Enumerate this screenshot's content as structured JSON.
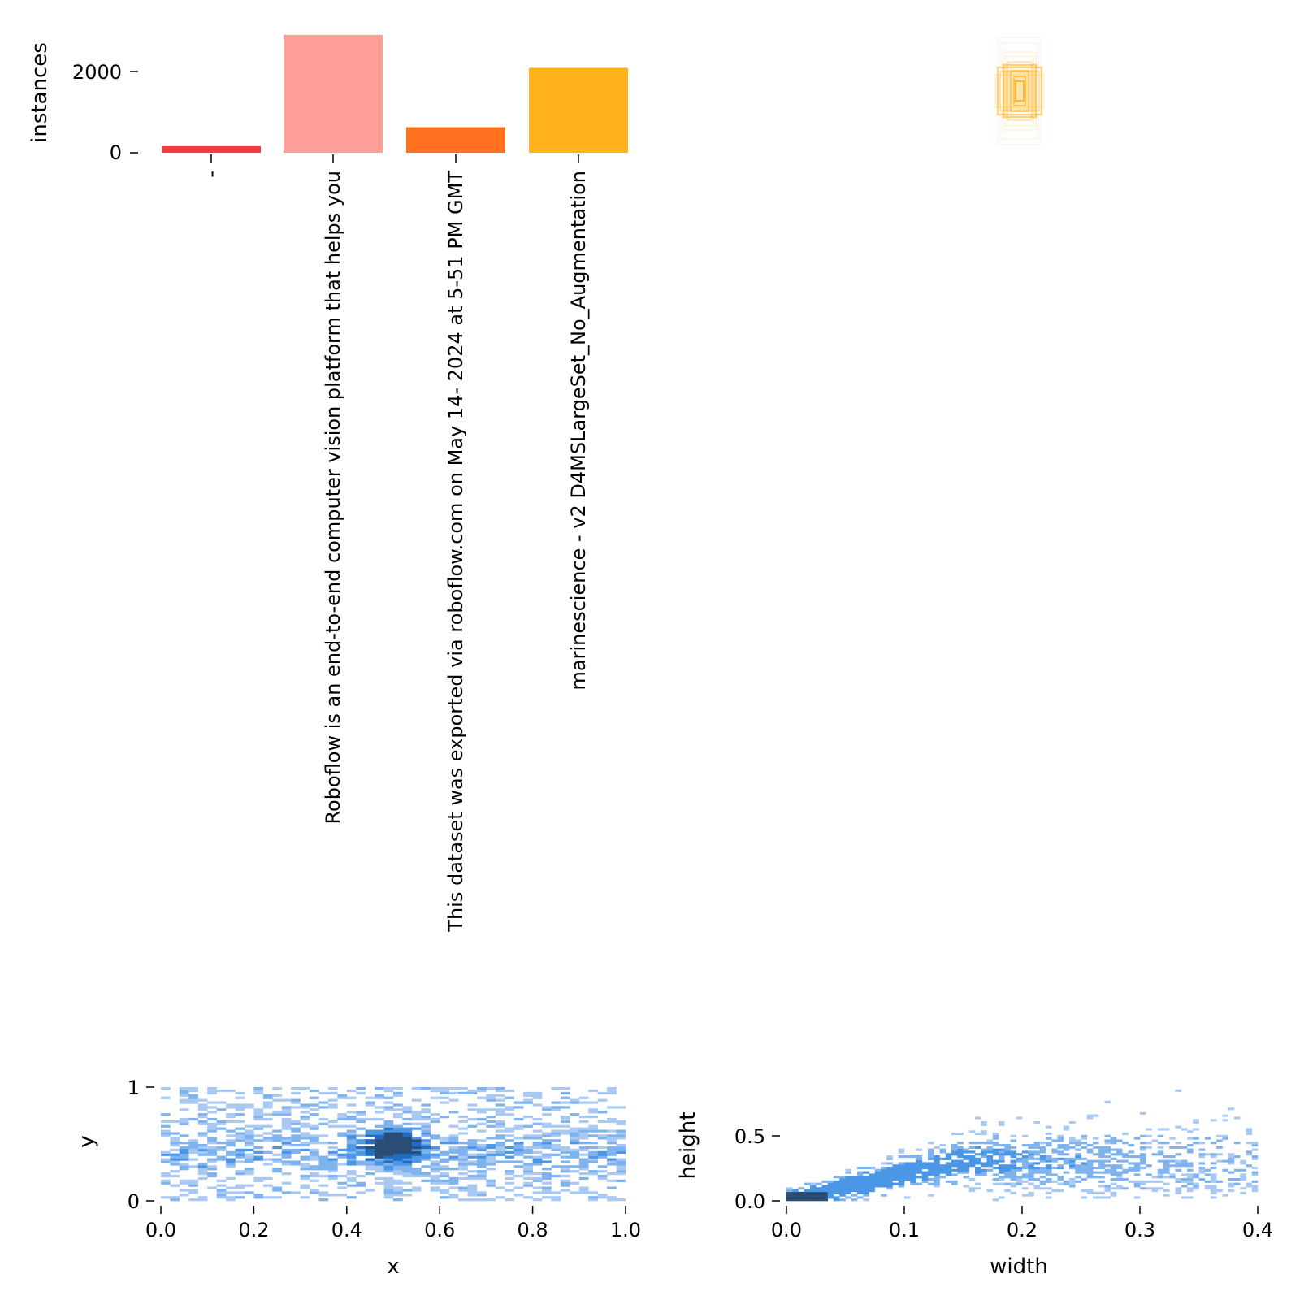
{
  "chart_data": [
    {
      "type": "bar",
      "ylabel": "instances",
      "yticks": [
        "0",
        "2000"
      ],
      "ylim": [
        0,
        3100
      ],
      "categories": [
        "-",
        "Roboflow is an end-to-end computer vision platform that helps you",
        "This dataset was exported via roboflow.com on May 14- 2024 at 5-51 PM GMT",
        "marinescience - v2 D4MSLargeSet_No_Augmentation"
      ],
      "values": [
        170,
        3040,
        660,
        2190
      ],
      "colors": [
        "#f23b3b",
        "#ff9d97",
        "#ff701f",
        "#ffb21d"
      ]
    },
    {
      "type": "other",
      "description_kind": "bounding-box-overlay",
      "color": "#ffb21d"
    },
    {
      "type": "heatmap",
      "xlabel": "x",
      "ylabel": "y",
      "xticks": [
        "0.0",
        "0.2",
        "0.4",
        "0.6",
        "0.8",
        "1.0"
      ],
      "yticks": [
        "0",
        "1"
      ],
      "xlim": [
        0,
        1
      ],
      "ylim": [
        0,
        1
      ],
      "color": "#3d8fe0"
    },
    {
      "type": "heatmap",
      "xlabel": "width",
      "ylabel": "height",
      "xticks": [
        "0.0",
        "0.1",
        "0.2",
        "0.3",
        "0.4"
      ],
      "yticks": [
        "0.0",
        "0.5"
      ],
      "xlim": [
        0,
        0.4
      ],
      "ylim": [
        0,
        1
      ],
      "color": "#3d8fe0"
    }
  ]
}
